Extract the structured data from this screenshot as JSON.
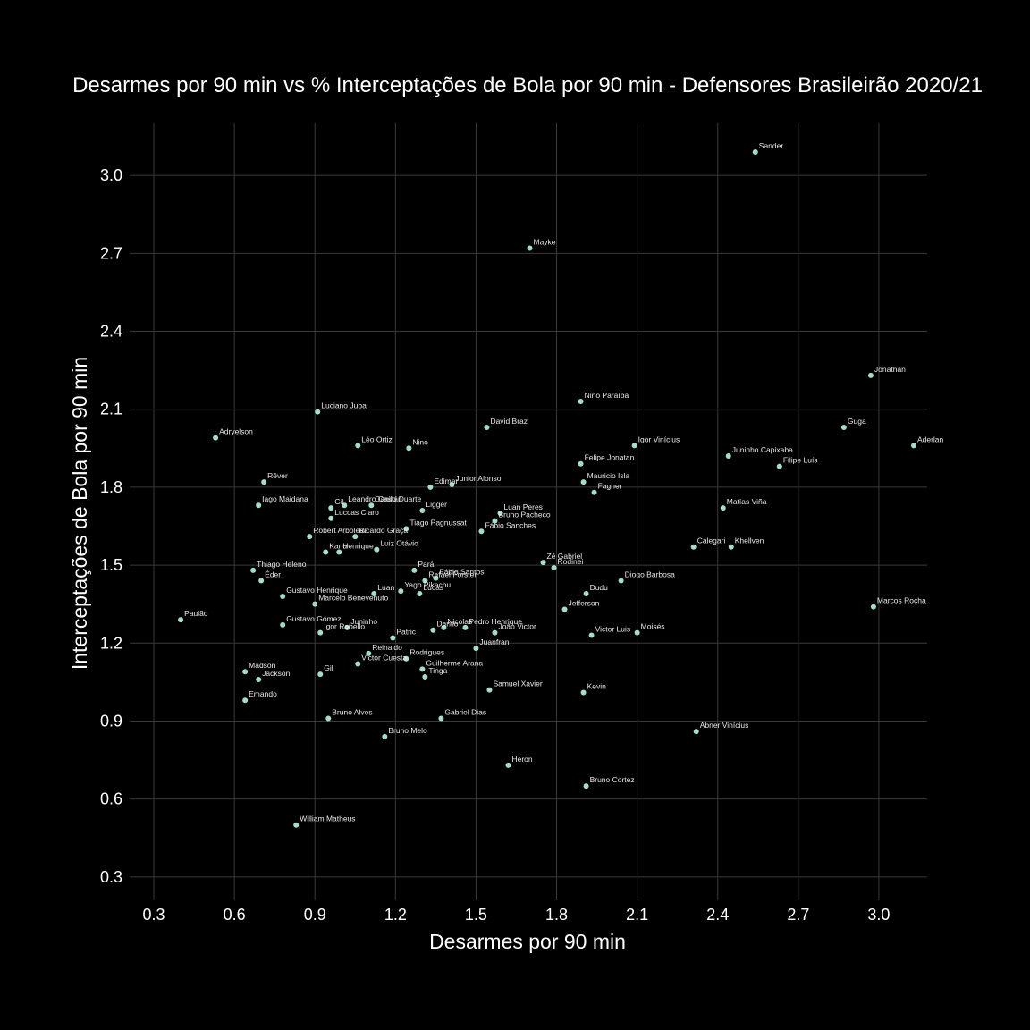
{
  "chart_data": {
    "type": "scatter",
    "title": "Desarmes por 90 min vs % Interceptações de Bola por 90 min - Defensores Brasileirão 2020/21",
    "xlabel": "Desarmes por 90 min",
    "ylabel": "Interceptações de Bola por 90 min",
    "xlim": [
      0.21,
      3.18
    ],
    "ylim": [
      0.21,
      3.2
    ],
    "xticks": [
      "0.3",
      "0.6",
      "0.9",
      "1.2",
      "1.5",
      "1.8",
      "2.1",
      "2.4",
      "2.7",
      "3.0"
    ],
    "yticks": [
      "0.3",
      "0.6",
      "0.9",
      "1.2",
      "1.5",
      "1.8",
      "2.1",
      "2.4",
      "2.7",
      "3.0"
    ],
    "grid": true,
    "point_color": "#a6dccd",
    "background": "#000000",
    "points": [
      {
        "label": "Sander",
        "x": 2.54,
        "y": 3.09
      },
      {
        "label": "Mayke",
        "x": 1.7,
        "y": 2.72
      },
      {
        "label": "Jonathan",
        "x": 2.97,
        "y": 2.23
      },
      {
        "label": "Nino Paraíba",
        "x": 1.89,
        "y": 2.13
      },
      {
        "label": "Luciano Juba",
        "x": 0.91,
        "y": 2.09
      },
      {
        "label": "David Braz",
        "x": 1.54,
        "y": 2.03
      },
      {
        "label": "Guga",
        "x": 2.87,
        "y": 2.03
      },
      {
        "label": "Adryelson",
        "x": 0.53,
        "y": 1.99
      },
      {
        "label": "Léo Ortiz",
        "x": 1.06,
        "y": 1.96
      },
      {
        "label": "Nino",
        "x": 1.25,
        "y": 1.95
      },
      {
        "label": "Igor Vinícius",
        "x": 2.09,
        "y": 1.96
      },
      {
        "label": "Aderlan",
        "x": 3.13,
        "y": 1.96
      },
      {
        "label": "Juninho Capixaba",
        "x": 2.44,
        "y": 1.92
      },
      {
        "label": "Felipe Jonatan",
        "x": 1.89,
        "y": 1.89
      },
      {
        "label": "Filipe Luís",
        "x": 2.63,
        "y": 1.88
      },
      {
        "label": "Rêver",
        "x": 0.71,
        "y": 1.82
      },
      {
        "label": "Edimar",
        "x": 1.33,
        "y": 1.8
      },
      {
        "label": "Junior Alonso",
        "x": 1.41,
        "y": 1.81
      },
      {
        "label": "Mauricio Isla",
        "x": 1.9,
        "y": 1.82
      },
      {
        "label": "Fagner",
        "x": 1.94,
        "y": 1.78
      },
      {
        "label": "Iago Maidana",
        "x": 0.69,
        "y": 1.73
      },
      {
        "label": "Gil",
        "x": 0.96,
        "y": 1.72
      },
      {
        "label": "Leandro Castán",
        "x": 1.01,
        "y": 1.73
      },
      {
        "label": "Danilo Duarte",
        "x": 1.11,
        "y": 1.73
      },
      {
        "label": "Ligger",
        "x": 1.3,
        "y": 1.71
      },
      {
        "label": "Matías Viña",
        "x": 2.42,
        "y": 1.72
      },
      {
        "label": "Luan Peres",
        "x": 1.59,
        "y": 1.7
      },
      {
        "label": "Luccas Claro",
        "x": 0.96,
        "y": 1.68
      },
      {
        "label": "Bruno Pacheco",
        "x": 1.57,
        "y": 1.67
      },
      {
        "label": "Tiago Pagnussat",
        "x": 1.24,
        "y": 1.64
      },
      {
        "label": "Fábio Sanches",
        "x": 1.52,
        "y": 1.63
      },
      {
        "label": "Robert Arboleda",
        "x": 0.88,
        "y": 1.61
      },
      {
        "label": "Ricardo Graça",
        "x": 1.05,
        "y": 1.61
      },
      {
        "label": "Calegari",
        "x": 2.31,
        "y": 1.57
      },
      {
        "label": "Khellven",
        "x": 2.45,
        "y": 1.57
      },
      {
        "label": "Kanu",
        "x": 0.94,
        "y": 1.55
      },
      {
        "label": "Henrique",
        "x": 0.99,
        "y": 1.55
      },
      {
        "label": "Luiz Otávio",
        "x": 1.13,
        "y": 1.56
      },
      {
        "label": "Zé Gabriel",
        "x": 1.75,
        "y": 1.51
      },
      {
        "label": "Rodinei",
        "x": 1.79,
        "y": 1.49
      },
      {
        "label": "Thiago Heleno",
        "x": 0.67,
        "y": 1.48
      },
      {
        "label": "Pará",
        "x": 1.27,
        "y": 1.48
      },
      {
        "label": "Fábio Santos",
        "x": 1.35,
        "y": 1.45
      },
      {
        "label": "Rafael Forster",
        "x": 1.31,
        "y": 1.44
      },
      {
        "label": "Éder",
        "x": 0.7,
        "y": 1.44
      },
      {
        "label": "Diogo Barbosa",
        "x": 2.04,
        "y": 1.44
      },
      {
        "label": "Yago Pikachu",
        "x": 1.22,
        "y": 1.4
      },
      {
        "label": "Lucas",
        "x": 1.29,
        "y": 1.39
      },
      {
        "label": "Luan",
        "x": 1.12,
        "y": 1.39
      },
      {
        "label": "Dudu",
        "x": 1.91,
        "y": 1.39
      },
      {
        "label": "Gustavo Henrique",
        "x": 0.78,
        "y": 1.38
      },
      {
        "label": "Marcelo Benevenuto",
        "x": 0.9,
        "y": 1.35
      },
      {
        "label": "Marcos Rocha",
        "x": 2.98,
        "y": 1.34
      },
      {
        "label": "Jefferson",
        "x": 1.83,
        "y": 1.33
      },
      {
        "label": "Paulão",
        "x": 0.4,
        "y": 1.29
      },
      {
        "label": "Gustavo Gómez",
        "x": 0.78,
        "y": 1.27
      },
      {
        "label": "Juninho",
        "x": 1.02,
        "y": 1.26
      },
      {
        "label": "Igor Rabello",
        "x": 0.92,
        "y": 1.24
      },
      {
        "label": "Patric",
        "x": 1.19,
        "y": 1.22
      },
      {
        "label": "Danilo",
        "x": 1.34,
        "y": 1.25
      },
      {
        "label": "Nicolas",
        "x": 1.38,
        "y": 1.26
      },
      {
        "label": "Pedro Henrique",
        "x": 1.46,
        "y": 1.26
      },
      {
        "label": "João Victor",
        "x": 1.57,
        "y": 1.24
      },
      {
        "label": "Victor Luis",
        "x": 1.93,
        "y": 1.23
      },
      {
        "label": "Moisés",
        "x": 2.1,
        "y": 1.24
      },
      {
        "label": "Juanfran",
        "x": 1.5,
        "y": 1.18
      },
      {
        "label": "Reinaldo",
        "x": 1.1,
        "y": 1.16
      },
      {
        "label": "Rodrigues",
        "x": 1.24,
        "y": 1.14
      },
      {
        "label": "Victor Cuesta",
        "x": 1.06,
        "y": 1.12
      },
      {
        "label": "Guilherme Arana",
        "x": 1.3,
        "y": 1.1
      },
      {
        "label": "Madson",
        "x": 0.64,
        "y": 1.09
      },
      {
        "label": "Gil",
        "x": 0.92,
        "y": 1.08
      },
      {
        "label": "Tinga",
        "x": 1.31,
        "y": 1.07
      },
      {
        "label": "Jackson",
        "x": 0.69,
        "y": 1.06
      },
      {
        "label": "Samuel Xavier",
        "x": 1.55,
        "y": 1.02
      },
      {
        "label": "Kevin",
        "x": 1.9,
        "y": 1.01
      },
      {
        "label": "Emando",
        "x": 0.64,
        "y": 0.98
      },
      {
        "label": "Bruno Alves",
        "x": 0.95,
        "y": 0.91
      },
      {
        "label": "Gabriel Dias",
        "x": 1.37,
        "y": 0.91
      },
      {
        "label": "Abner Vinícius",
        "x": 2.32,
        "y": 0.86
      },
      {
        "label": "Bruno Melo",
        "x": 1.16,
        "y": 0.84
      },
      {
        "label": "Heron",
        "x": 1.62,
        "y": 0.73
      },
      {
        "label": "Bruno Cortez",
        "x": 1.91,
        "y": 0.65
      },
      {
        "label": "William Matheus",
        "x": 0.83,
        "y": 0.5
      }
    ]
  }
}
